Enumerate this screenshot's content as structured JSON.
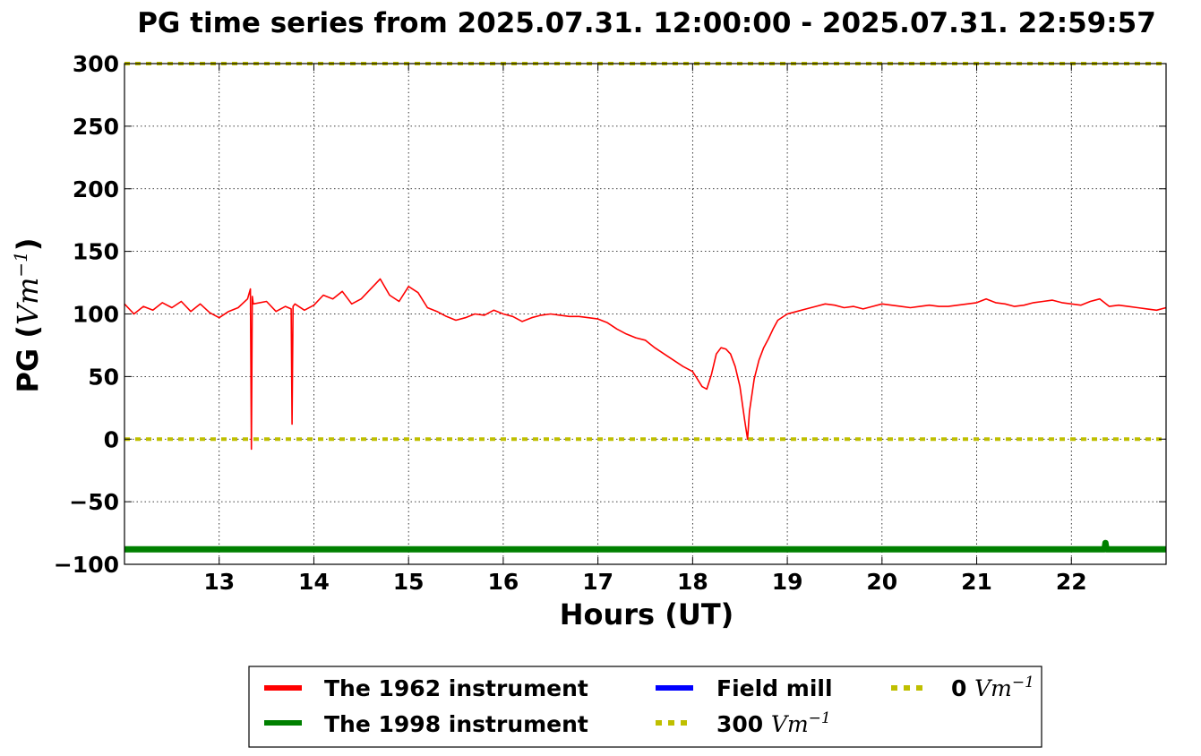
{
  "chart_data": {
    "type": "line",
    "title": "PG time series from 2025.07.31. 12:00:00 - 2025.07.31. 22:59:57",
    "xlabel": "Hours (UT)",
    "ylabel": "PG (Vm^-1)",
    "xlim": [
      12.0,
      23.0
    ],
    "ylim": [
      -100,
      300
    ],
    "xticks": [
      13,
      14,
      15,
      16,
      17,
      18,
      19,
      20,
      21,
      22
    ],
    "yticks": [
      -100,
      -50,
      0,
      50,
      100,
      150,
      200,
      250,
      300
    ],
    "ytick_labels": [
      "−100",
      "−50",
      "0",
      "50",
      "100",
      "150",
      "200",
      "250",
      "300"
    ],
    "grid": true,
    "legend_position": "bottom-center, below plot",
    "series": [
      {
        "name": "The 1962 instrument",
        "color": "#ff0000",
        "x": [
          12.0,
          12.1,
          12.2,
          12.3,
          12.4,
          12.5,
          12.6,
          12.7,
          12.8,
          12.9,
          13.0,
          13.1,
          13.2,
          13.3,
          13.33,
          13.34,
          13.35,
          13.36,
          13.5,
          13.6,
          13.7,
          13.76,
          13.77,
          13.78,
          13.8,
          13.9,
          14.0,
          14.1,
          14.2,
          14.3,
          14.4,
          14.5,
          14.6,
          14.7,
          14.8,
          14.9,
          15.0,
          15.1,
          15.2,
          15.3,
          15.4,
          15.5,
          15.6,
          15.7,
          15.8,
          15.9,
          16.0,
          16.1,
          16.2,
          16.3,
          16.4,
          16.5,
          16.6,
          16.7,
          16.8,
          16.9,
          17.0,
          17.1,
          17.2,
          17.3,
          17.4,
          17.5,
          17.6,
          17.7,
          17.8,
          17.9,
          18.0,
          18.05,
          18.1,
          18.15,
          18.2,
          18.25,
          18.3,
          18.35,
          18.4,
          18.45,
          18.5,
          18.55,
          18.58,
          18.6,
          18.65,
          18.7,
          18.75,
          18.8,
          18.85,
          18.9,
          19.0,
          19.1,
          19.2,
          19.3,
          19.4,
          19.5,
          19.6,
          19.7,
          19.8,
          19.9,
          20.0,
          20.1,
          20.2,
          20.3,
          20.4,
          20.5,
          20.6,
          20.7,
          20.8,
          20.9,
          21.0,
          21.1,
          21.2,
          21.3,
          21.4,
          21.5,
          21.6,
          21.7,
          21.8,
          21.9,
          22.0,
          22.1,
          22.2,
          22.3,
          22.4,
          22.5,
          22.6,
          22.7,
          22.8,
          22.9,
          23.0
        ],
        "y": [
          108,
          100,
          106,
          103,
          109,
          105,
          110,
          102,
          108,
          101,
          97,
          102,
          105,
          112,
          120,
          -8,
          114,
          108,
          110,
          102,
          106,
          104,
          12,
          106,
          108,
          103,
          107,
          115,
          112,
          118,
          108,
          112,
          120,
          128,
          115,
          110,
          122,
          117,
          105,
          102,
          98,
          95,
          97,
          100,
          99,
          103,
          100,
          98,
          94,
          97,
          99,
          100,
          99,
          98,
          98,
          97,
          96,
          93,
          88,
          84,
          81,
          79,
          73,
          68,
          63,
          58,
          54,
          48,
          42,
          40,
          52,
          68,
          73,
          72,
          68,
          58,
          42,
          15,
          0,
          22,
          48,
          63,
          73,
          80,
          88,
          95,
          100,
          102,
          104,
          106,
          108,
          107,
          105,
          106,
          104,
          106,
          108,
          107,
          106,
          105,
          106,
          107,
          106,
          106,
          107,
          108,
          109,
          112,
          109,
          108,
          106,
          107,
          109,
          110,
          111,
          109,
          108,
          107,
          110,
          112,
          106,
          107,
          106,
          105,
          104,
          103,
          105
        ]
      },
      {
        "name": "The 1998 instrument",
        "color": "#008000",
        "x": [
          12.0,
          22.35,
          22.36,
          22.37,
          23.0
        ],
        "y": [
          -88,
          -88,
          -83,
          -88,
          -88
        ]
      },
      {
        "name": "Field mill",
        "color": "#0000ff",
        "x": [],
        "y": []
      },
      {
        "name": "300 Vm^-1",
        "color": "#bfbf00",
        "style": "dotted",
        "x": [
          12.0,
          23.0
        ],
        "y": [
          300,
          300
        ]
      },
      {
        "name": "0 Vm^-1",
        "color": "#bfbf00",
        "style": "dotted",
        "x": [
          12.0,
          23.0
        ],
        "y": [
          0,
          0
        ]
      }
    ]
  },
  "legend": {
    "items": [
      {
        "prefix": "The 1962 instrument",
        "math": ""
      },
      {
        "prefix": "The 1998 instrument",
        "math": ""
      },
      {
        "prefix": "Field mill",
        "math": ""
      },
      {
        "prefix": "300 ",
        "math": "Vm"
      },
      {
        "prefix": "0 ",
        "math": "Vm"
      }
    ],
    "exponent": "−1"
  },
  "ylabel_parts": {
    "prefix": "PG (",
    "math": "Vm",
    "exponent": "−1",
    "suffix": ")"
  }
}
